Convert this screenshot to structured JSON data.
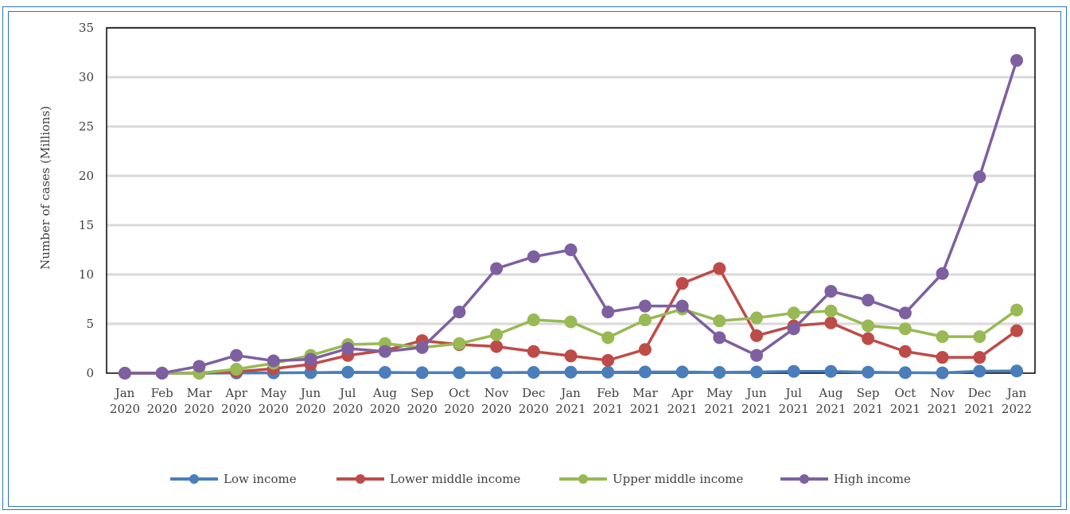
{
  "chart_data": {
    "type": "line",
    "title": "",
    "xlabel": "",
    "ylabel": "Number of cases (Millions)",
    "ylim": [
      0,
      35
    ],
    "yticks": [
      0,
      5,
      10,
      15,
      20,
      25,
      30,
      35
    ],
    "grid": true,
    "legend": "bottom",
    "categories": [
      [
        "Jan",
        "2020"
      ],
      [
        "Feb",
        "2020"
      ],
      [
        "Mar",
        "2020"
      ],
      [
        "Apr",
        "2020"
      ],
      [
        "May",
        "2020"
      ],
      [
        "Jun",
        "2020"
      ],
      [
        "Jul",
        "2020"
      ],
      [
        "Aug",
        "2020"
      ],
      [
        "Sep",
        "2020"
      ],
      [
        "Oct",
        "2020"
      ],
      [
        "Nov",
        "2020"
      ],
      [
        "Dec",
        "2020"
      ],
      [
        "Jan",
        "2021"
      ],
      [
        "Feb",
        "2021"
      ],
      [
        "Mar",
        "2021"
      ],
      [
        "Apr",
        "2021"
      ],
      [
        "May",
        "2021"
      ],
      [
        "Jun",
        "2021"
      ],
      [
        "Jul",
        "2021"
      ],
      [
        "Aug",
        "2021"
      ],
      [
        "Sep",
        "2021"
      ],
      [
        "Oct",
        "2021"
      ],
      [
        "Nov",
        "2021"
      ],
      [
        "Dec",
        "2021"
      ],
      [
        "Jan",
        "2022"
      ]
    ],
    "series": [
      {
        "name": "Low  income",
        "color": "#4a7ebb",
        "values": [
          0,
          0,
          0,
          0.02,
          0.03,
          0.05,
          0.1,
          0.08,
          0.05,
          0.05,
          0.05,
          0.08,
          0.1,
          0.1,
          0.12,
          0.12,
          0.08,
          0.12,
          0.18,
          0.18,
          0.1,
          0.05,
          0.03,
          0.2,
          0.22
        ]
      },
      {
        "name": "Lower middle income",
        "color": "#be4b48",
        "values": [
          0,
          0,
          0,
          0.15,
          0.45,
          0.9,
          1.8,
          2.3,
          3.3,
          2.9,
          2.7,
          2.2,
          1.75,
          1.3,
          2.4,
          9.1,
          10.6,
          3.8,
          4.8,
          5.1,
          3.5,
          2.2,
          1.6,
          1.6,
          4.3
        ]
      },
      {
        "name": "Upper middle income",
        "color": "#98b954",
        "values": [
          0,
          0.02,
          0,
          0.4,
          1.0,
          1.8,
          2.9,
          3.0,
          2.6,
          3.0,
          3.9,
          5.4,
          5.2,
          3.6,
          5.4,
          6.5,
          5.3,
          5.6,
          6.1,
          6.3,
          4.8,
          4.5,
          3.7,
          3.7,
          6.4
        ]
      },
      {
        "name": "High income",
        "color": "#7d60a0",
        "values": [
          0,
          0,
          0.7,
          1.8,
          1.25,
          1.4,
          2.5,
          2.2,
          2.6,
          6.2,
          10.6,
          11.8,
          12.5,
          6.2,
          6.8,
          6.8,
          3.6,
          1.8,
          4.5,
          8.3,
          7.4,
          6.1,
          10.1,
          19.9,
          31.7
        ]
      }
    ]
  }
}
